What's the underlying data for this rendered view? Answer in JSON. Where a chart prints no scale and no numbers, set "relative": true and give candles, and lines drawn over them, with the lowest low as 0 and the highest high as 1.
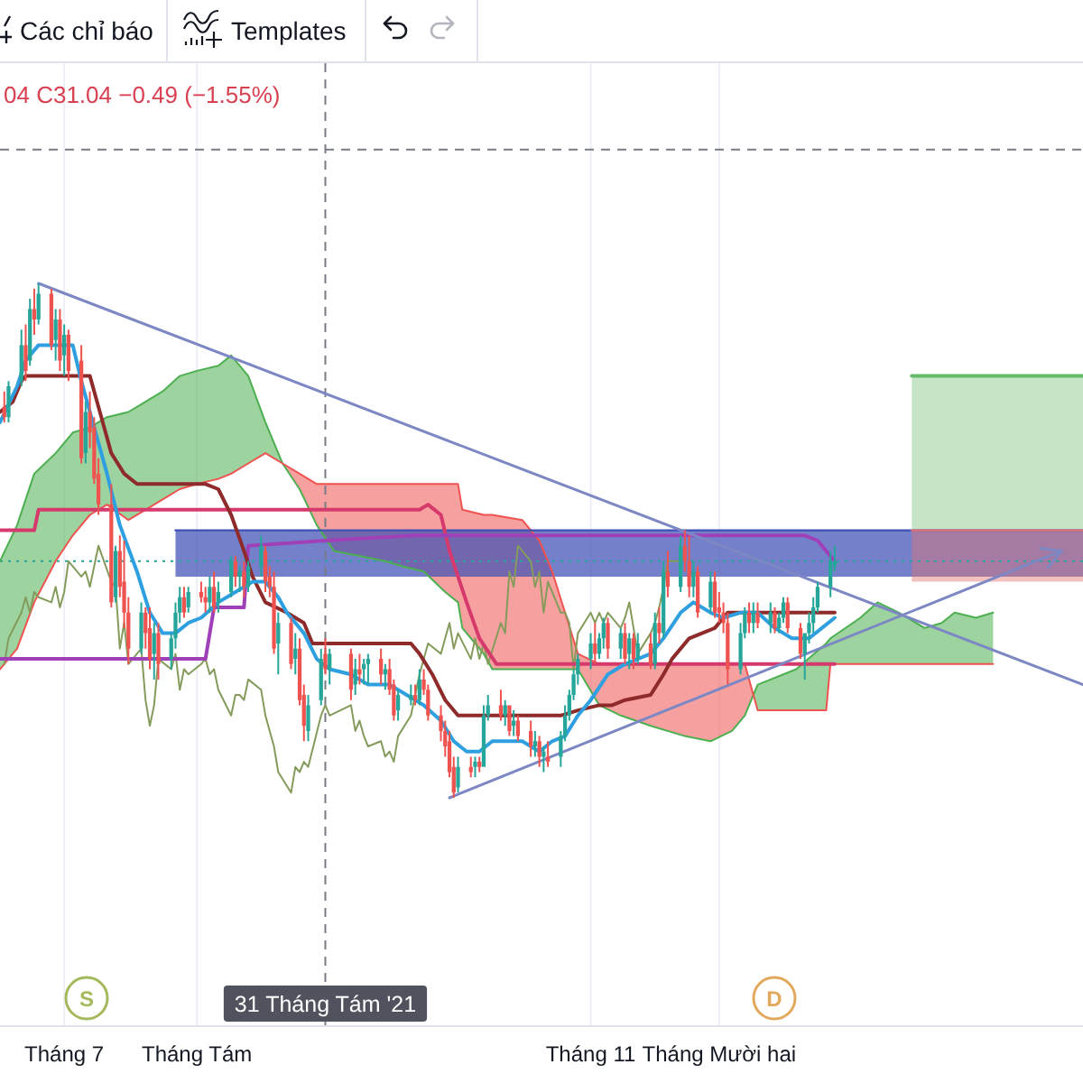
{
  "chart_data": {
    "type": "candlestick",
    "relative": true,
    "x": [
      "2021-06-17",
      "2021-06-18",
      "2021-06-21",
      "2021-06-22",
      "2021-06-23",
      "2021-06-24",
      "2021-06-25",
      "2021-06-28",
      "2021-06-29",
      "2021-06-30",
      "2021-07-01",
      "2021-07-02",
      "2021-07-05",
      "2021-07-06",
      "2021-07-07",
      "2021-07-08",
      "2021-07-09",
      "2021-07-12",
      "2021-07-13",
      "2021-07-14",
      "2021-07-15",
      "2021-07-16",
      "2021-07-19",
      "2021-07-20",
      "2021-07-21",
      "2021-07-22",
      "2021-07-23",
      "2021-07-26",
      "2021-07-27",
      "2021-07-28",
      "2021-07-29",
      "2021-07-30",
      "2021-08-02",
      "2021-08-03",
      "2021-08-04",
      "2021-08-05",
      "2021-08-06",
      "2021-08-09",
      "2021-08-10",
      "2021-08-11",
      "2021-08-12",
      "2021-08-13",
      "2021-08-16",
      "2021-08-17",
      "2021-08-18",
      "2021-08-19",
      "2021-08-20",
      "2021-08-23",
      "2021-08-24",
      "2021-08-25",
      "2021-08-26",
      "2021-08-27",
      "2021-08-30",
      "2021-08-31",
      "2021-09-01",
      "2021-09-06",
      "2021-09-07",
      "2021-09-08",
      "2021-09-09",
      "2021-09-10",
      "2021-09-13",
      "2021-09-14",
      "2021-09-15",
      "2021-09-16",
      "2021-09-17",
      "2021-09-20",
      "2021-09-21",
      "2021-09-22",
      "2021-09-23",
      "2021-09-24",
      "2021-09-27",
      "2021-09-28",
      "2021-09-29",
      "2021-09-30",
      "2021-10-01",
      "2021-10-04",
      "2021-10-05",
      "2021-10-06",
      "2021-10-07",
      "2021-10-08",
      "2021-10-11",
      "2021-10-12",
      "2021-10-13",
      "2021-10-14",
      "2021-10-15",
      "2021-10-18",
      "2021-10-19",
      "2021-10-20",
      "2021-10-21",
      "2021-10-22",
      "2021-10-25",
      "2021-10-26",
      "2021-10-27",
      "2021-10-28",
      "2021-10-29",
      "2021-11-01",
      "2021-11-02",
      "2021-11-03",
      "2021-11-04",
      "2021-11-05",
      "2021-11-08",
      "2021-11-09",
      "2021-11-10",
      "2021-11-11",
      "2021-11-12",
      "2021-11-15",
      "2021-11-16",
      "2021-11-17",
      "2021-11-18",
      "2021-11-19",
      "2021-11-22",
      "2021-11-23",
      "2021-11-24",
      "2021-11-25",
      "2021-11-26",
      "2021-11-29",
      "2021-11-30",
      "2021-12-01",
      "2021-12-02",
      "2021-12-03",
      "2021-12-06",
      "2021-12-07",
      "2021-12-08",
      "2021-12-09",
      "2021-12-10",
      "2021-12-13",
      "2021-12-14",
      "2021-12-15",
      "2021-12-16",
      "2021-12-17",
      "2021-12-20",
      "2021-12-21",
      "2021-12-22",
      "2021-12-23",
      "2021-12-24",
      "2021-12-27",
      "2021-12-28"
    ],
    "ohlc": [
      [
        0.76,
        0.79,
        0.73,
        0.74
      ],
      [
        0.74,
        0.81,
        0.73,
        0.8
      ],
      [
        0.81,
        0.91,
        0.8,
        0.88
      ],
      [
        0.88,
        0.92,
        0.81,
        0.83
      ],
      [
        0.85,
        0.97,
        0.84,
        0.95
      ],
      [
        0.95,
        0.99,
        0.9,
        0.93
      ],
      [
        0.93,
        1.0,
        0.92,
        0.98
      ],
      [
        0.98,
        0.99,
        0.87,
        0.88
      ],
      [
        0.89,
        0.95,
        0.85,
        0.93
      ],
      [
        0.93,
        0.95,
        0.83,
        0.85
      ],
      [
        0.86,
        0.92,
        0.82,
        0.9
      ],
      [
        0.9,
        0.91,
        0.81,
        0.83
      ],
      [
        0.85,
        0.88,
        0.65,
        0.66
      ],
      [
        0.67,
        0.77,
        0.65,
        0.75
      ],
      [
        0.75,
        0.79,
        0.68,
        0.71
      ],
      [
        0.72,
        0.74,
        0.61,
        0.62
      ],
      [
        0.63,
        0.66,
        0.55,
        0.57
      ],
      [
        0.57,
        0.61,
        0.37,
        0.38
      ],
      [
        0.39,
        0.49,
        0.38,
        0.48
      ],
      [
        0.48,
        0.51,
        0.39,
        0.41
      ],
      [
        0.42,
        0.5,
        0.33,
        0.36
      ],
      [
        0.36,
        0.39,
        0.26,
        0.29
      ],
      [
        0.29,
        0.38,
        0.28,
        0.36
      ],
      [
        0.36,
        0.37,
        0.29,
        0.32
      ],
      [
        0.33,
        0.37,
        0.25,
        0.27
      ],
      [
        0.28,
        0.34,
        0.23,
        0.32
      ],
      [
        0.32,
        0.34,
        0.23,
        0.26
      ],
      [
        0.27,
        0.32,
        0.25,
        0.31
      ],
      [
        0.31,
        0.38,
        0.29,
        0.36
      ],
      [
        0.36,
        0.41,
        0.34,
        0.39
      ],
      [
        0.39,
        0.41,
        0.35,
        0.36
      ],
      [
        0.37,
        0.41,
        0.36,
        0.4
      ],
      [
        0.4,
        0.42,
        0.38,
        0.39
      ],
      [
        0.39,
        0.41,
        0.36,
        0.38
      ],
      [
        0.38,
        0.43,
        0.36,
        0.41
      ],
      [
        0.41,
        0.44,
        0.36,
        0.37
      ],
      [
        0.38,
        0.42,
        0.36,
        0.4
      ],
      [
        0.4,
        0.47,
        0.39,
        0.46
      ],
      [
        0.46,
        0.47,
        0.41,
        0.43
      ],
      [
        0.43,
        0.45,
        0.4,
        0.44
      ],
      [
        0.44,
        0.46,
        0.39,
        0.41
      ],
      [
        0.41,
        0.46,
        0.4,
        0.45
      ],
      [
        0.45,
        0.51,
        0.43,
        0.49
      ],
      [
        0.48,
        0.49,
        0.4,
        0.42
      ],
      [
        0.43,
        0.45,
        0.39,
        0.41
      ],
      [
        0.41,
        0.44,
        0.28,
        0.29
      ],
      [
        0.3,
        0.36,
        0.24,
        0.34
      ],
      [
        0.34,
        0.35,
        0.25,
        0.26
      ],
      [
        0.27,
        0.32,
        0.24,
        0.29
      ],
      [
        0.29,
        0.31,
        0.18,
        0.19
      ],
      [
        0.2,
        0.22,
        0.11,
        0.14
      ],
      [
        0.13,
        0.2,
        0.11,
        0.18
      ],
      [
        0.19,
        0.29,
        0.18,
        0.27
      ],
      [
        0.28,
        0.31,
        0.24,
        0.25
      ],
      [
        0.25,
        0.29,
        0.22,
        0.28
      ],
      [
        0.28,
        0.29,
        0.19,
        0.21
      ],
      [
        0.22,
        0.27,
        0.2,
        0.25
      ],
      [
        0.25,
        0.28,
        0.22,
        0.24
      ],
      [
        0.25,
        0.27,
        0.22,
        0.26
      ],
      [
        0.26,
        0.28,
        0.22,
        0.27
      ],
      [
        0.27,
        0.29,
        0.22,
        0.24
      ],
      [
        0.24,
        0.26,
        0.21,
        0.25
      ],
      [
        0.25,
        0.27,
        0.2,
        0.21
      ],
      [
        0.22,
        0.23,
        0.15,
        0.16
      ],
      [
        0.17,
        0.21,
        0.15,
        0.2
      ],
      [
        0.19,
        0.22,
        0.18,
        0.2
      ],
      [
        0.2,
        0.22,
        0.18,
        0.19
      ],
      [
        0.19,
        0.25,
        0.18,
        0.23
      ],
      [
        0.23,
        0.25,
        0.2,
        0.21
      ],
      [
        0.21,
        0.22,
        0.15,
        0.16
      ],
      [
        0.16,
        0.18,
        0.11,
        0.13
      ],
      [
        0.13,
        0.15,
        0.08,
        0.1
      ],
      [
        0.11,
        0.13,
        0.04,
        0.05
      ],
      [
        0.06,
        0.08,
        0,
        0.01
      ],
      [
        0.02,
        0.08,
        0.01,
        0.06
      ],
      [
        0.06,
        0.08,
        0.04,
        0.05
      ],
      [
        0.06,
        0.08,
        0.04,
        0.07
      ],
      [
        0.07,
        0.08,
        0.05,
        0.06
      ],
      [
        0.06,
        0.18,
        0.06,
        0.16
      ],
      [
        0.16,
        0.2,
        0.15,
        0.18
      ],
      [
        0.18,
        0.21,
        0.15,
        0.16
      ],
      [
        0.16,
        0.19,
        0.14,
        0.18
      ],
      [
        0.18,
        0.18,
        0.12,
        0.13
      ],
      [
        0.14,
        0.17,
        0.12,
        0.15
      ],
      [
        0.15,
        0.16,
        0.11,
        0.12
      ],
      [
        0.13,
        0.15,
        0.08,
        0.1
      ],
      [
        0.1,
        0.13,
        0.08,
        0.11
      ],
      [
        0.11,
        0.12,
        0.06,
        0.08
      ],
      [
        0.08,
        0.1,
        0.05,
        0.09
      ],
      [
        0.08,
        0.11,
        0.06,
        0.07
      ],
      [
        0.08,
        0.13,
        0.06,
        0.12
      ],
      [
        0.12,
        0.18,
        0.11,
        0.16
      ],
      [
        0.16,
        0.21,
        0.15,
        0.2
      ],
      [
        0.2,
        0.25,
        0.19,
        0.24
      ],
      [
        0.24,
        0.28,
        0.22,
        0.27
      ],
      [
        0.27,
        0.32,
        0.25,
        0.3
      ],
      [
        0.3,
        0.34,
        0.26,
        0.28
      ],
      [
        0.28,
        0.32,
        0.27,
        0.31
      ],
      [
        0.31,
        0.35,
        0.29,
        0.34
      ],
      [
        0.34,
        0.35,
        0.27,
        0.29
      ],
      [
        0.29,
        0.33,
        0.27,
        0.32
      ],
      [
        0.32,
        0.34,
        0.26,
        0.27
      ],
      [
        0.28,
        0.32,
        0.25,
        0.31
      ],
      [
        0.31,
        0.32,
        0.25,
        0.27
      ],
      [
        0.27,
        0.32,
        0.26,
        0.3
      ],
      [
        0.3,
        0.32,
        0.25,
        0.26
      ],
      [
        0.26,
        0.36,
        0.25,
        0.34
      ],
      [
        0.34,
        0.37,
        0.3,
        0.32
      ],
      [
        0.32,
        0.46,
        0.31,
        0.44
      ],
      [
        0.44,
        0.48,
        0.39,
        0.41
      ],
      [
        0.41,
        0.51,
        0.4,
        0.49
      ],
      [
        0.49,
        0.52,
        0.44,
        0.46
      ],
      [
        0.46,
        0.51,
        0.39,
        0.41
      ],
      [
        0.41,
        0.46,
        0.39,
        0.44
      ],
      [
        0.44,
        0.45,
        0.35,
        0.36
      ],
      [
        0.37,
        0.44,
        0.36,
        0.42
      ],
      [
        0.42,
        0.44,
        0.35,
        0.36
      ],
      [
        0.37,
        0.4,
        0.34,
        0.36
      ],
      [
        0.36,
        0.38,
        0.32,
        0.34
      ],
      [
        0.34,
        0.36,
        0.22,
        0.25
      ],
      [
        0.25,
        0.34,
        0.24,
        0.32
      ],
      [
        0.32,
        0.37,
        0.31,
        0.36
      ],
      [
        0.36,
        0.38,
        0.32,
        0.34
      ],
      [
        0.34,
        0.38,
        0.32,
        0.36
      ],
      [
        0.36,
        0.38,
        0.33,
        0.34
      ],
      [
        0.34,
        0.38,
        0.32,
        0.36
      ],
      [
        0.36,
        0.37,
        0.32,
        0.33
      ],
      [
        0.33,
        0.36,
        0.32,
        0.35
      ],
      [
        0.35,
        0.39,
        0.34,
        0.38
      ],
      [
        0.38,
        0.39,
        0.32,
        0.33
      ],
      [
        0.33,
        0.34,
        0.27,
        0.28
      ],
      [
        0.28,
        0.32,
        0.23,
        0.32
      ],
      [
        0.32,
        0.36,
        0.3,
        0.34
      ],
      [
        0.34,
        0.39,
        0.32,
        0.37
      ],
      [
        0.37,
        0.42,
        0.36,
        0.41
      ],
      [
        0.41,
        0.48,
        0.39,
        0.46
      ],
      [
        0.45,
        0.49,
        0.44,
        0.46
      ]
    ],
    "colors": [
      "#ef5350",
      "#26a69a",
      "#26a69a",
      "#ef5350",
      "#26a69a",
      "#ef5350",
      "#26a69a",
      "#ef5350",
      "#26a69a",
      "#ef5350",
      "#26a69a",
      "#ef5350",
      "#ef5350",
      "#26a69a",
      "#ef5350",
      "#ef5350",
      "#ef5350",
      "#ef5350",
      "#26a69a",
      "#ef5350",
      "#ef5350",
      "#ef5350",
      "#26a69a",
      "#ef5350",
      "#ef5350",
      "#26a69a",
      "#ef5350",
      "#26a69a",
      "#26a69a",
      "#26a69a",
      "#ef5350",
      "#26a69a",
      "#ef5350",
      "#ef5350",
      "#26a69a",
      "#ef5350",
      "#26a69a",
      "#26a69a",
      "#ef5350",
      "#26a69a",
      "#ef5350",
      "#26a69a",
      "#26a69a",
      "#ef5350",
      "#ef5350",
      "#ef5350",
      "#26a69a",
      "#ef5350",
      "#26a69a",
      "#ef5350",
      "#ef5350",
      "#26a69a",
      "#26a69a",
      "#ef5350",
      "#26a69a",
      "#ef5350",
      "#26a69a",
      "#ef5350",
      "#26a69a",
      "#26a69a",
      "#ef5350",
      "#26a69a",
      "#ef5350",
      "#ef5350",
      "#26a69a",
      "#26a69a",
      "#ef5350",
      "#26a69a",
      "#ef5350",
      "#ef5350",
      "#ef5350",
      "#ef5350",
      "#ef5350",
      "#ef5350",
      "#26a69a",
      "#ef5350",
      "#26a69a",
      "#ef5350",
      "#26a69a",
      "#26a69a",
      "#ef5350",
      "#26a69a",
      "#ef5350",
      "#26a69a",
      "#ef5350",
      "#ef5350",
      "#26a69a",
      "#ef5350",
      "#26a69a",
      "#ef5350",
      "#26a69a",
      "#26a69a",
      "#26a69a",
      "#26a69a",
      "#26a69a",
      "#26a69a",
      "#ef5350",
      "#26a69a",
      "#26a69a",
      "#ef5350",
      "#26a69a",
      "#ef5350",
      "#26a69a",
      "#ef5350",
      "#26a69a",
      "#ef5350",
      "#26a69a",
      "#ef5350",
      "#26a69a",
      "#ef5350",
      "#26a69a",
      "#ef5350",
      "#ef5350",
      "#26a69a",
      "#ef5350",
      "#26a69a",
      "#ef5350",
      "#ef5350",
      "#ef5350",
      "#ef5350",
      "#26a69a",
      "#26a69a",
      "#ef5350",
      "#26a69a",
      "#ef5350",
      "#26a69a",
      "#ef5350",
      "#26a69a",
      "#26a69a",
      "#ef5350",
      "#ef5350",
      "#26a69a",
      "#26a69a",
      "#26a69a",
      "#26a69a",
      "#26a69a",
      "#26a69a"
    ],
    "xlim": [
      "2021-06-16",
      "2022-02-24"
    ],
    "xticks": [
      {
        "value": "2021-07-01",
        "label": "Tháng 7"
      },
      {
        "value": "2021-08-01",
        "label": "Tháng Tám"
      },
      {
        "value": "2021-11-01",
        "label": "Tháng 11"
      },
      {
        "value": "2021-12-01",
        "label": "Tháng Mười hai"
      }
    ],
    "grid": "x",
    "series": [
      {
        "type": "line",
        "color": "#4caf50",
        "x": [
          "2021-06-16",
          "2021-06-20",
          "2021-06-24",
          "2021-06-29",
          "2021-07-03",
          "2021-07-07",
          "2021-07-11",
          "2021-07-16",
          "2021-07-20",
          "2021-07-24",
          "2021-07-28",
          "2021-08-01",
          "2021-08-06",
          "2021-08-09",
          "2021-08-13",
          "2021-08-17",
          "2021-08-21",
          "2021-08-25",
          "2021-08-29",
          "2021-09-02",
          "2021-09-08",
          "2021-09-14",
          "2021-09-18",
          "2021-09-23",
          "2021-09-28",
          "2021-10-01",
          "2021-10-02",
          "2021-10-07",
          "2021-10-09",
          "2021-10-16",
          "2021-10-20",
          "2021-10-23",
          "2021-10-26",
          "2021-10-29",
          "2021-11-03",
          "2021-11-08",
          "2021-11-15",
          "2021-11-23",
          "2021-11-29",
          "2021-12-04",
          "2021-12-07",
          "2021-12-09",
          "2021-12-10",
          "2021-12-19",
          "2021-12-26",
          "2021-12-27",
          "2022-01-03",
          "2022-01-07",
          "2022-01-12",
          "2022-01-18",
          "2022-01-22",
          "2022-01-25",
          "2022-01-30",
          "2022-02-03"
        ],
        "values": [
          0.46,
          0.53,
          0.63,
          0.67,
          0.71,
          0.72,
          0.74,
          0.75,
          0.77,
          0.79,
          0.82,
          0.83,
          0.84,
          0.86,
          0.82,
          0.73,
          0.65,
          0.6,
          0.53,
          0.48,
          0.47,
          0.46,
          0.45,
          0.44,
          0.4,
          0.38,
          0.33,
          0.28,
          0.25,
          0.25,
          0.25,
          0.25,
          0.25,
          0.25,
          0.18,
          0.16,
          0.14,
          0.12,
          0.11,
          0.13,
          0.16,
          0.2,
          0.22,
          0.25,
          0.3,
          0.31,
          0.35,
          0.38,
          0.36,
          0.33,
          0.34,
          0.36,
          0.35,
          0.36
        ],
        "lower": [
          0.25,
          0.29,
          0.38,
          0.46,
          0.51,
          0.55,
          0.57,
          0.54,
          0.56,
          0.58,
          0.6,
          0.61,
          0.62,
          0.63,
          0.65,
          0.67,
          0.65,
          null,
          null,
          null,
          null,
          null,
          null,
          null,
          null,
          null,
          null,
          null,
          null,
          null,
          null,
          null,
          null,
          null,
          null,
          null,
          null,
          null,
          null,
          null,
          null,
          0.2,
          0.17,
          0.17,
          0.17,
          0.26,
          0.26,
          0.26,
          0.26,
          0.26,
          0.26,
          0.26,
          0.26,
          0.26
        ],
        "upper": [
          0.46,
          0.53,
          0.63,
          0.67,
          0.71,
          0.72,
          0.74,
          0.75,
          0.77,
          0.79,
          0.82,
          0.83,
          0.84,
          0.86,
          0.82,
          0.73,
          0.65,
          null,
          null,
          null,
          null,
          null,
          null,
          null,
          null,
          null,
          null,
          null,
          null,
          null,
          null,
          null,
          null,
          null,
          null,
          null,
          null,
          null,
          null,
          null,
          null,
          0.2,
          0.22,
          0.25,
          0.3,
          0.31,
          0.35,
          0.38,
          0.36,
          0.33,
          0.34,
          0.36,
          0.35,
          0.36
        ]
      },
      {
        "type": "line",
        "color": "#ef5350",
        "x": [
          "2021-06-16",
          "2021-06-20",
          "2021-06-24",
          "2021-06-29",
          "2021-07-03",
          "2021-07-07",
          "2021-07-11",
          "2021-07-16",
          "2021-07-20",
          "2021-07-24",
          "2021-07-28",
          "2021-08-01",
          "2021-08-06",
          "2021-08-09",
          "2021-08-13",
          "2021-08-17",
          "2021-08-21",
          "2021-08-25",
          "2021-08-29",
          "2021-09-02",
          "2021-09-08",
          "2021-09-14",
          "2021-09-18",
          "2021-09-23",
          "2021-09-28",
          "2021-10-01",
          "2021-10-02",
          "2021-10-07",
          "2021-10-09",
          "2021-10-16",
          "2021-10-20",
          "2021-10-23",
          "2021-10-26",
          "2021-10-29",
          "2021-11-03",
          "2021-11-08",
          "2021-11-15",
          "2021-11-23",
          "2021-11-29",
          "2021-12-04",
          "2021-12-07",
          "2021-12-09",
          "2021-12-10",
          "2021-12-19",
          "2021-12-26",
          "2021-12-27",
          "2022-01-03",
          "2022-01-07",
          "2022-01-12",
          "2022-01-18",
          "2022-01-22",
          "2022-01-25",
          "2022-01-30",
          "2022-02-03"
        ],
        "values": [
          0.25,
          0.29,
          0.38,
          0.46,
          0.51,
          0.55,
          0.57,
          0.54,
          0.56,
          0.58,
          0.6,
          0.61,
          0.62,
          0.63,
          0.65,
          0.67,
          0.65,
          0.63,
          0.61,
          0.61,
          0.61,
          0.61,
          0.61,
          0.61,
          0.61,
          0.61,
          0.56,
          0.55,
          0.55,
          0.54,
          0.5,
          0.44,
          0.36,
          0.28,
          0.26,
          0.26,
          0.26,
          0.26,
          0.26,
          0.26,
          0.26,
          0.2,
          0.17,
          0.17,
          0.17,
          0.26,
          0.26,
          0.26,
          0.26,
          0.26,
          0.26,
          0.26,
          0.26,
          0.26
        ],
        "lower": [
          null,
          null,
          null,
          null,
          null,
          null,
          null,
          null,
          null,
          null,
          null,
          null,
          null,
          null,
          null,
          null,
          0.65,
          0.6,
          0.53,
          0.48,
          0.47,
          0.46,
          0.45,
          0.44,
          0.4,
          0.38,
          0.33,
          0.28,
          0.25,
          0.25,
          0.25,
          0.25,
          0.25,
          0.25,
          0.18,
          0.16,
          0.14,
          0.12,
          0.11,
          0.13,
          0.16,
          0.2,
          null,
          null,
          null,
          null,
          null,
          null,
          null,
          null,
          null,
          null,
          null,
          null
        ],
        "upper": [
          null,
          null,
          null,
          null,
          null,
          null,
          null,
          null,
          null,
          null,
          null,
          null,
          null,
          null,
          null,
          null,
          0.65,
          0.63,
          0.61,
          0.61,
          0.61,
          0.61,
          0.61,
          0.61,
          0.61,
          0.61,
          0.56,
          0.55,
          0.55,
          0.54,
          0.5,
          0.44,
          0.36,
          0.28,
          0.26,
          0.26,
          0.26,
          0.26,
          0.26,
          0.26,
          0.26,
          0.2,
          null,
          null,
          null,
          null,
          null,
          null,
          null,
          null,
          null,
          null,
          null,
          null
        ]
      },
      {
        "type": "line",
        "color": "#3f51b5",
        "x": [
          "2021-07-27",
          "2022-02-24"
        ],
        "values": [
          0.52,
          0.52
        ],
        "lower": [
          0.43,
          0.43
        ],
        "upper": [
          0.52,
          0.52
        ]
      },
      {
        "type": "line",
        "color": "#66bb6a",
        "x": [
          "2022-01-15",
          "2022-02-24"
        ],
        "values": [
          0.82,
          0.82
        ],
        "lower": [
          0.52,
          0.52
        ],
        "upper": [
          0.82,
          0.82
        ]
      },
      {
        "type": "line",
        "color": "#e57373",
        "x": [
          "2022-01-15",
          "2022-02-24"
        ],
        "values": [
          0.52,
          0.52
        ],
        "lower": [
          0.42,
          0.42
        ],
        "upper": [
          0.52,
          0.52
        ]
      },
      {
        "type": "line",
        "color": "#849b5c",
        "values": [
          0.26,
          0.31,
          0.36,
          0.39,
          0.36,
          0.4,
          0.39,
          0.38,
          0.41,
          0.37,
          0.4,
          0.46,
          0.43,
          0.44,
          0.41,
          0.45,
          0.49,
          0.42,
          0.41,
          0.29,
          0.34,
          0.26,
          0.29,
          0.19,
          0.14,
          0.18,
          0.27,
          0.25,
          0.28,
          0.21,
          0.25,
          0.24,
          0.26,
          0.27,
          0.24,
          0.25,
          0.21,
          0.16,
          0.2,
          0.2,
          0.19,
          0.23,
          0.21,
          0.16,
          0.13,
          0.1,
          0.05,
          0.01,
          0.06,
          0.05,
          0.07,
          0.06,
          0.16,
          0.18,
          0.16,
          0.18,
          0.13,
          0.15,
          0.12,
          0.1,
          0.11,
          0.08,
          0.09,
          0.07,
          0.12,
          0.16,
          0.2,
          0.24,
          0.27,
          0.3,
          0.28,
          0.31,
          0.34,
          0.29,
          0.32,
          0.27,
          0.31,
          0.27,
          0.3,
          0.26,
          0.34,
          0.32,
          0.44,
          0.41,
          0.49,
          0.46,
          0.41,
          0.44,
          0.36,
          0.42,
          0.36,
          0.36,
          0.34,
          0.25,
          0.32,
          0.36,
          0.34,
          0.36,
          0.34,
          0.36,
          0.33,
          0.35,
          0.38,
          0.33,
          0.28,
          0.32,
          0.34,
          0.37,
          0.41,
          0.46,
          0.46,
          null,
          null,
          null,
          null,
          null,
          null,
          null,
          null,
          null,
          null,
          null,
          null,
          null,
          null,
          null,
          null,
          null,
          null,
          null,
          null,
          null,
          null,
          null,
          null,
          null,
          null
        ]
      },
      {
        "type": "line",
        "color": "#d63a6c",
        "x": [
          "2021-06-16",
          "2021-06-24",
          "2021-06-25",
          "2021-09-22",
          "2021-09-24",
          "2021-09-27",
          "2021-09-29",
          "2021-10-03",
          "2021-10-06",
          "2021-10-10",
          "2021-12-28"
        ],
        "values": [
          0.52,
          0.52,
          0.56,
          0.56,
          0.57,
          0.55,
          0.48,
          0.38,
          0.31,
          0.26,
          0.26
        ]
      },
      {
        "type": "line",
        "color": "#a040b8",
        "x": [
          "2021-06-16",
          "2021-08-03",
          "2021-08-05",
          "2021-08-12",
          "2021-08-13",
          "2021-08-31",
          "2021-09-21",
          "2021-12-21",
          "2021-12-24",
          "2021-12-26",
          "2021-12-28"
        ],
        "values": [
          0.27,
          0.27,
          0.37,
          0.37,
          0.49,
          0.5,
          0.51,
          0.51,
          0.5,
          0.48,
          0.46
        ]
      },
      {
        "type": "line",
        "color": "#8e2a2a",
        "x": [
          "2021-06-16",
          "2021-06-19",
          "2021-06-21",
          "2021-06-22",
          "2021-07-07",
          "2021-07-09",
          "2021-07-12",
          "2021-07-15",
          "2021-07-18",
          "2021-08-03",
          "2021-08-06",
          "2021-08-09",
          "2021-08-12",
          "2021-08-14",
          "2021-08-17",
          "2021-08-22",
          "2021-08-26",
          "2021-08-28",
          "2021-09-20",
          "2021-09-22",
          "2021-09-25",
          "2021-09-28",
          "2021-10-01",
          "2021-10-25",
          "2021-10-29",
          "2021-11-03",
          "2021-11-06",
          "2021-11-09",
          "2021-11-15",
          "2021-11-18",
          "2021-11-20",
          "2021-11-24",
          "2021-11-30",
          "2021-12-03",
          "2021-12-28"
        ],
        "values": [
          0.75,
          0.77,
          0.81,
          0.82,
          0.82,
          0.76,
          0.67,
          0.63,
          0.61,
          0.61,
          0.6,
          0.55,
          0.48,
          0.43,
          0.38,
          0.36,
          0.34,
          0.3,
          0.3,
          0.28,
          0.24,
          0.19,
          0.16,
          0.16,
          0.17,
          0.18,
          0.18,
          0.19,
          0.2,
          0.24,
          0.27,
          0.31,
          0.33,
          0.36,
          0.36
        ]
      },
      {
        "type": "line",
        "color": "#2e9fe0",
        "x": [
          "2021-06-16",
          "2021-06-20",
          "2021-06-22",
          "2021-06-25",
          "2021-06-30",
          "2021-07-03",
          "2021-07-05",
          "2021-07-08",
          "2021-07-11",
          "2021-07-14",
          "2021-07-18",
          "2021-07-21",
          "2021-07-24",
          "2021-07-27",
          "2021-07-30",
          "2021-08-02",
          "2021-08-06",
          "2021-08-10",
          "2021-08-14",
          "2021-08-17",
          "2021-08-20",
          "2021-08-22",
          "2021-08-26",
          "2021-08-29",
          "2021-09-01",
          "2021-09-06",
          "2021-09-10",
          "2021-09-15",
          "2021-09-19",
          "2021-09-23",
          "2021-09-27",
          "2021-09-30",
          "2021-10-03",
          "2021-10-06",
          "2021-10-09",
          "2021-10-12",
          "2021-10-16",
          "2021-10-20",
          "2021-10-23",
          "2021-10-26",
          "2021-10-29",
          "2021-11-01",
          "2021-11-05",
          "2021-11-09",
          "2021-11-15",
          "2021-11-18",
          "2021-11-22",
          "2021-11-25",
          "2021-11-29",
          "2021-12-02",
          "2021-12-06",
          "2021-12-10",
          "2021-12-14",
          "2021-12-18",
          "2021-12-22",
          "2021-12-25",
          "2021-12-28"
        ],
        "values": [
          0.73,
          0.8,
          0.85,
          0.88,
          0.88,
          0.88,
          0.81,
          0.72,
          0.63,
          0.53,
          0.44,
          0.36,
          0.32,
          0.32,
          0.34,
          0.35,
          0.38,
          0.4,
          0.42,
          0.42,
          0.39,
          0.36,
          0.32,
          0.27,
          0.25,
          0.24,
          0.22,
          0.22,
          0.2,
          0.18,
          0.15,
          0.11,
          0.09,
          0.09,
          0.11,
          0.11,
          0.11,
          0.09,
          0.11,
          0.12,
          0.16,
          0.19,
          0.24,
          0.26,
          0.28,
          0.31,
          0.36,
          0.38,
          0.36,
          0.35,
          0.36,
          0.36,
          0.33,
          0.31,
          0.31,
          0.33,
          0.35
        ]
      },
      {
        "type": "line",
        "color": "#7c87c4",
        "x": [
          "2021-06-25",
          "2022-02-24"
        ],
        "values": [
          1.0,
          0.22
        ]
      },
      {
        "type": "line",
        "color": "#7c87c4",
        "x": [
          "2021-09-29",
          "2022-02-19"
        ],
        "values": [
          0,
          0.48
        ]
      }
    ],
    "ref_lines": [
      {
        "axis": "x",
        "value": "2021-08-31",
        "label": "31 Tháng Tám '21",
        "color": "#787b86",
        "line_style": "dashed"
      },
      {
        "axis": "y",
        "value": 1.26,
        "color": "#787b86",
        "line_style": "dashed"
      },
      {
        "axis": "y",
        "value": 0.46,
        "color": "#26a69a",
        "line_style": "dotted"
      }
    ],
    "annotations": [
      "Các chỉ báo",
      "Templates",
      "04 C31.04 −0.49 (−1.55%)",
      "S",
      "D"
    ]
  }
}
